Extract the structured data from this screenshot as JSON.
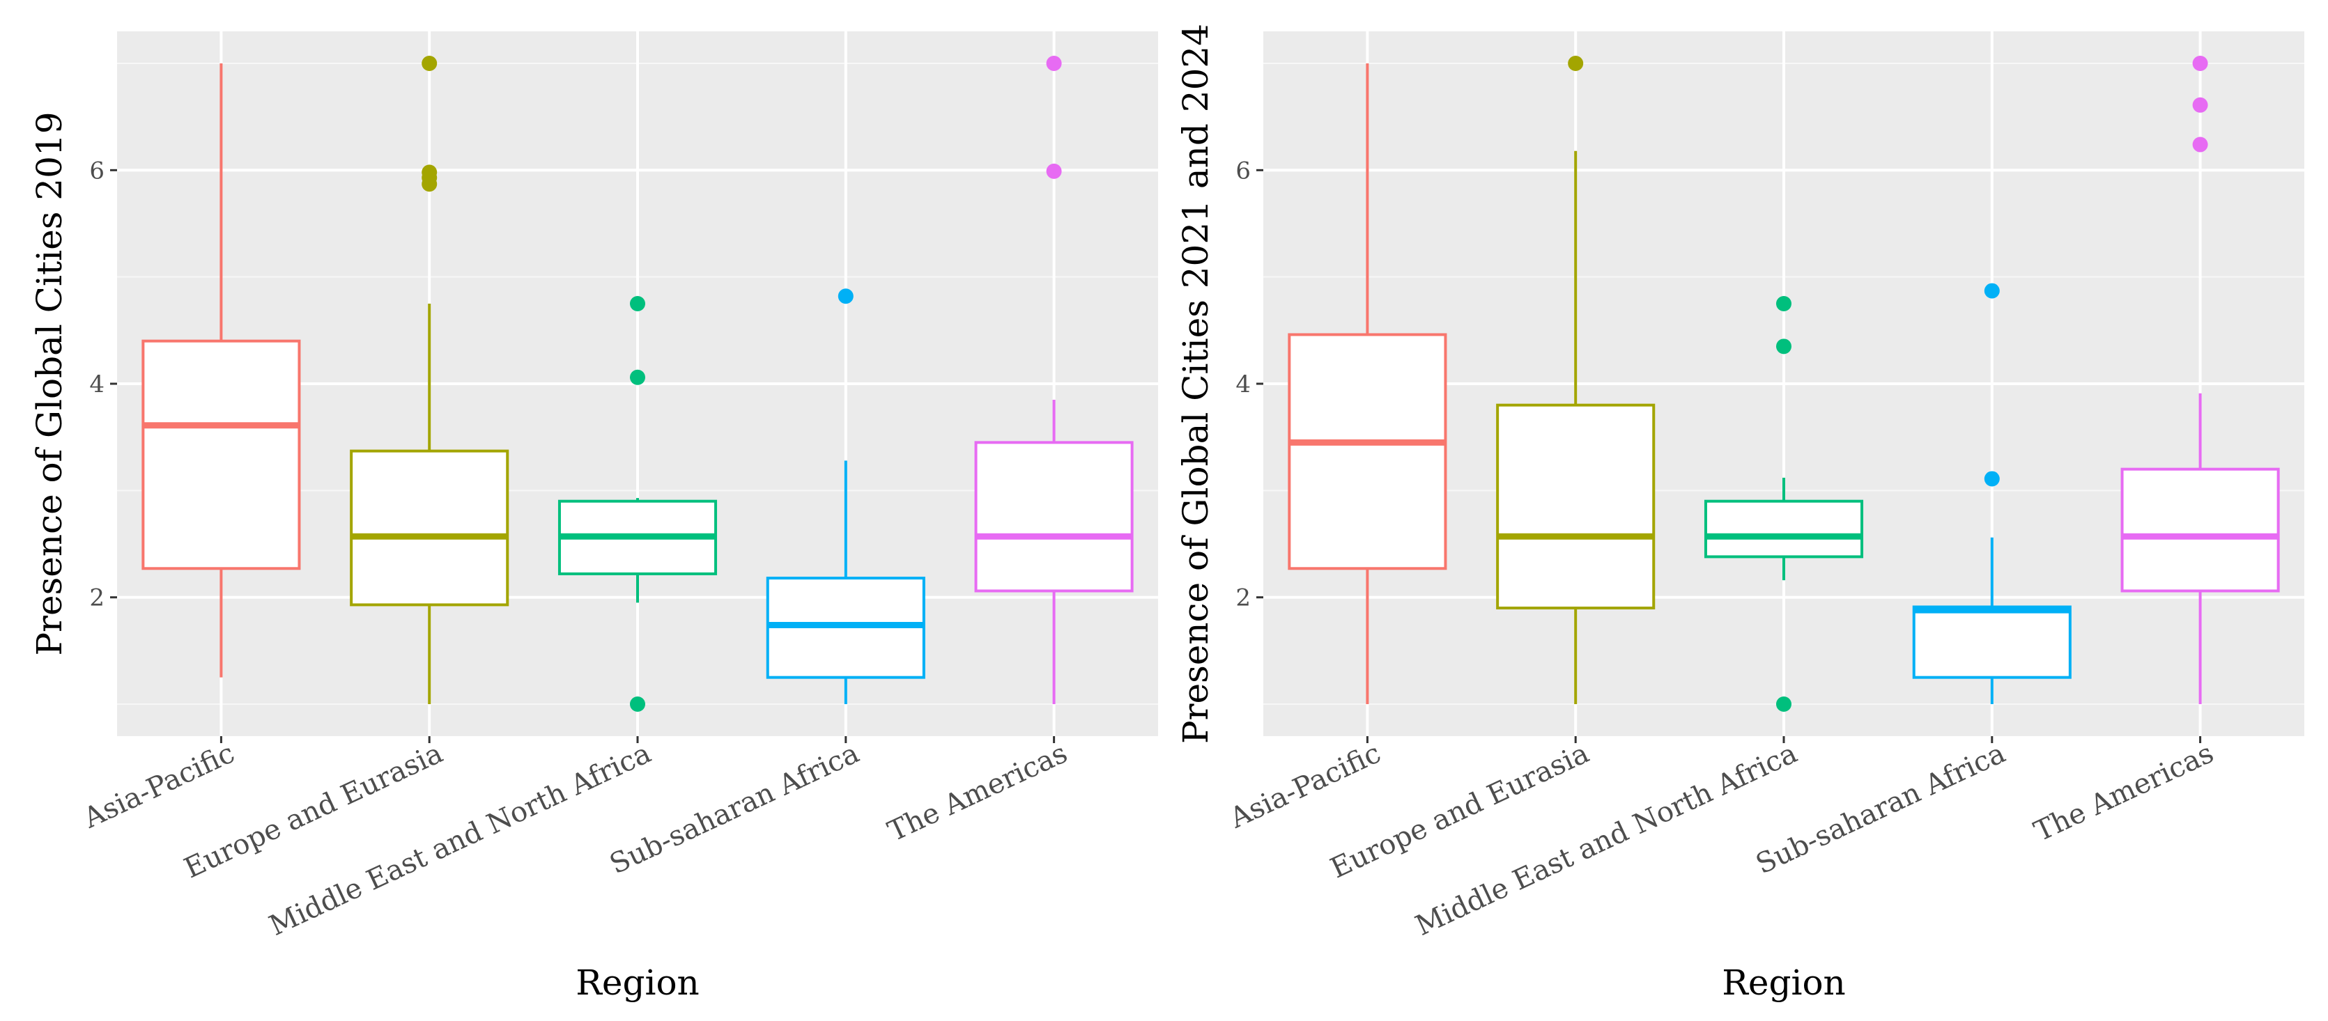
{
  "chart_data": [
    {
      "type": "boxplot",
      "xlabel": "Region",
      "ylabel": "Presence of Global Cities 2019",
      "ylim": [
        0.7,
        7.3
      ],
      "yticks": [
        2,
        4,
        6
      ],
      "grid": true,
      "categories": [
        "Asia-Pacific",
        "Europe and Eurasia",
        "Middle East and North Africa",
        "Sub-saharan Africa",
        "The Americas"
      ],
      "colors": [
        "#F8766D",
        "#A3A500",
        "#00BF7D",
        "#00B0F6",
        "#E76BF3"
      ],
      "boxes": [
        {
          "category": "Asia-Pacific",
          "whisker_low": 1.25,
          "q1": 2.27,
          "median": 3.61,
          "q3": 4.4,
          "whisker_high": 7.0,
          "outliers": []
        },
        {
          "category": "Europe and Eurasia",
          "whisker_low": 1.0,
          "q1": 1.93,
          "median": 2.57,
          "q3": 3.37,
          "whisker_high": 4.75,
          "outliers": [
            5.87,
            5.93,
            5.98,
            7.0
          ]
        },
        {
          "category": "Middle East and North Africa",
          "whisker_low": 1.95,
          "q1": 2.22,
          "median": 2.57,
          "q3": 2.9,
          "whisker_high": 2.93,
          "outliers": [
            1.0,
            4.06,
            4.75
          ]
        },
        {
          "category": "Sub-saharan Africa",
          "whisker_low": 1.0,
          "q1": 1.25,
          "median": 1.74,
          "q3": 2.18,
          "whisker_high": 3.28,
          "outliers": [
            4.82
          ]
        },
        {
          "category": "The Americas",
          "whisker_low": 1.0,
          "q1": 2.06,
          "median": 2.57,
          "q3": 3.45,
          "whisker_high": 3.85,
          "outliers": [
            5.99,
            7.0
          ]
        }
      ]
    },
    {
      "type": "boxplot",
      "xlabel": "Region",
      "ylabel": "Presence of Global Cities 2021 and 2024",
      "ylim": [
        0.7,
        7.3
      ],
      "yticks": [
        2,
        4,
        6
      ],
      "grid": true,
      "categories": [
        "Asia-Pacific",
        "Europe and Eurasia",
        "Middle East and North Africa",
        "Sub-saharan Africa",
        "The Americas"
      ],
      "colors": [
        "#F8766D",
        "#A3A500",
        "#00BF7D",
        "#00B0F6",
        "#E76BF3"
      ],
      "boxes": [
        {
          "category": "Asia-Pacific",
          "whisker_low": 1.0,
          "q1": 2.27,
          "median": 3.45,
          "q3": 4.46,
          "whisker_high": 7.0,
          "outliers": []
        },
        {
          "category": "Europe and Eurasia",
          "whisker_low": 1.0,
          "q1": 1.9,
          "median": 2.57,
          "q3": 3.8,
          "whisker_high": 6.18,
          "outliers": [
            7.0
          ]
        },
        {
          "category": "Middle East and North Africa",
          "whisker_low": 2.16,
          "q1": 2.38,
          "median": 2.57,
          "q3": 2.9,
          "whisker_high": 3.12,
          "outliers": [
            1.0,
            4.35,
            4.75
          ]
        },
        {
          "category": "Sub-saharan Africa",
          "whisker_low": 1.0,
          "q1": 1.25,
          "median": 1.88,
          "q3": 1.91,
          "whisker_high": 2.56,
          "outliers": [
            3.11,
            4.87
          ]
        },
        {
          "category": "The Americas",
          "whisker_low": 1.0,
          "q1": 2.06,
          "median": 2.57,
          "q3": 3.2,
          "whisker_high": 3.91,
          "outliers": [
            6.24,
            6.61,
            7.0
          ]
        }
      ]
    }
  ]
}
